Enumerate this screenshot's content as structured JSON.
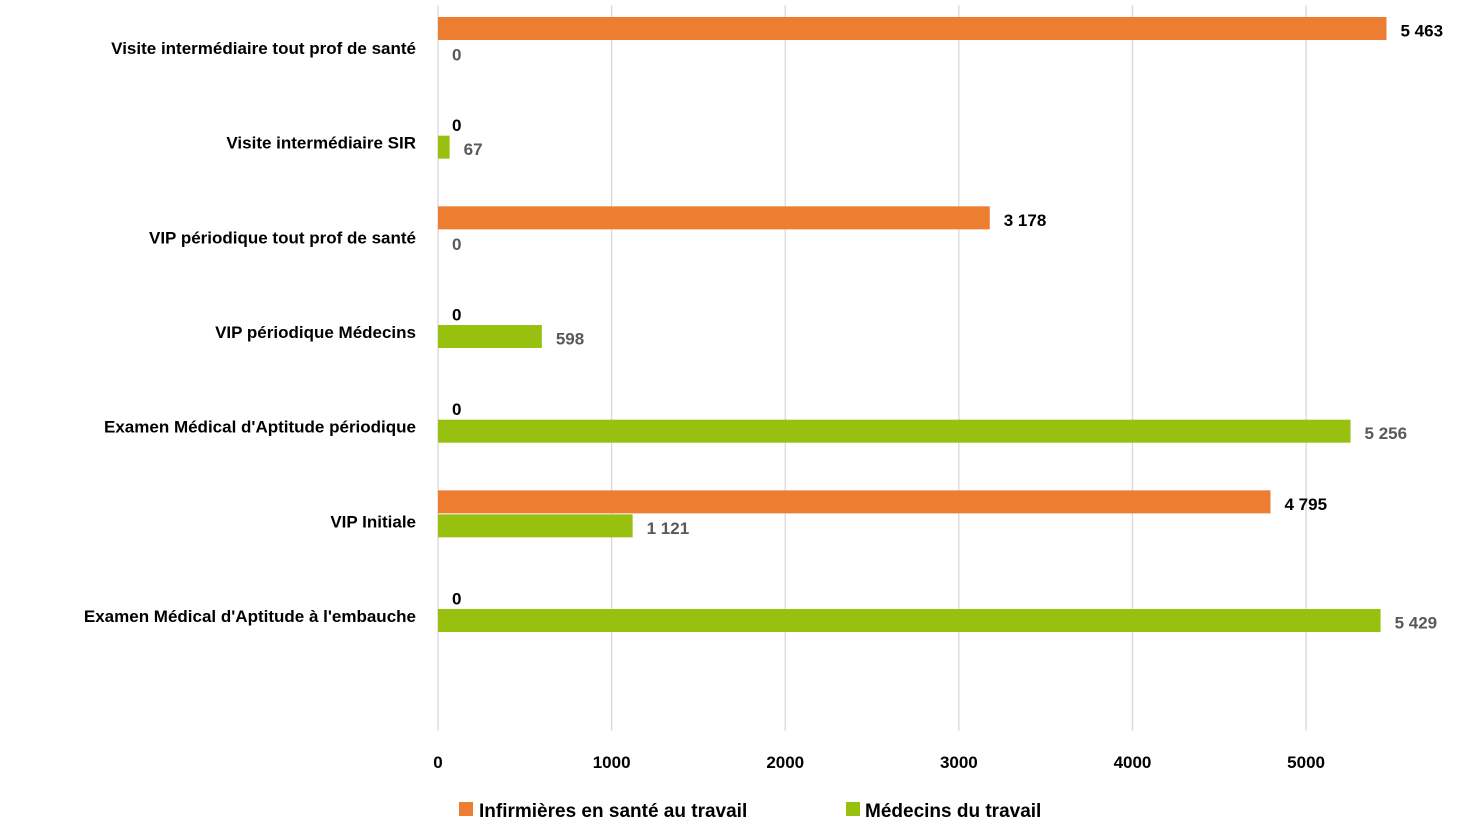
{
  "chart_data": {
    "type": "bar",
    "orientation": "horizontal",
    "categories": [
      "Visite intermédiaire tout prof de santé",
      "Visite intermédiaire SIR",
      "VIP périodique tout prof de santé",
      "VIP périodique Médecins",
      "Examen Médical d'Aptitude périodique",
      "VIP Initiale",
      "Examen Médical d'Aptitude à l'embauche"
    ],
    "series": [
      {
        "name": "Infirmières en santé au travail",
        "color": "#ED7D31",
        "label_color": "#000000",
        "values": [
          5463,
          0,
          3178,
          0,
          0,
          4795,
          0
        ],
        "labels": [
          "5 463",
          "0",
          "3 178",
          "0",
          "0",
          "4 795",
          "0"
        ]
      },
      {
        "name": "Médecins du travail",
        "color": "#97C10E",
        "label_color": "#595959",
        "values": [
          0,
          67,
          0,
          598,
          5256,
          1121,
          5429
        ],
        "labels": [
          "0",
          "67",
          "0",
          "598",
          "5 256",
          "1 121",
          "5 429"
        ]
      }
    ],
    "xlim": [
      0,
      5500
    ],
    "xticks": [
      0,
      1000,
      2000,
      3000,
      4000,
      5000
    ],
    "xtick_labels": [
      "0",
      "1000",
      "2000",
      "3000",
      "4000",
      "5000"
    ],
    "grid": true,
    "legend_position": "bottom",
    "title": "",
    "xlabel": "",
    "ylabel": ""
  }
}
